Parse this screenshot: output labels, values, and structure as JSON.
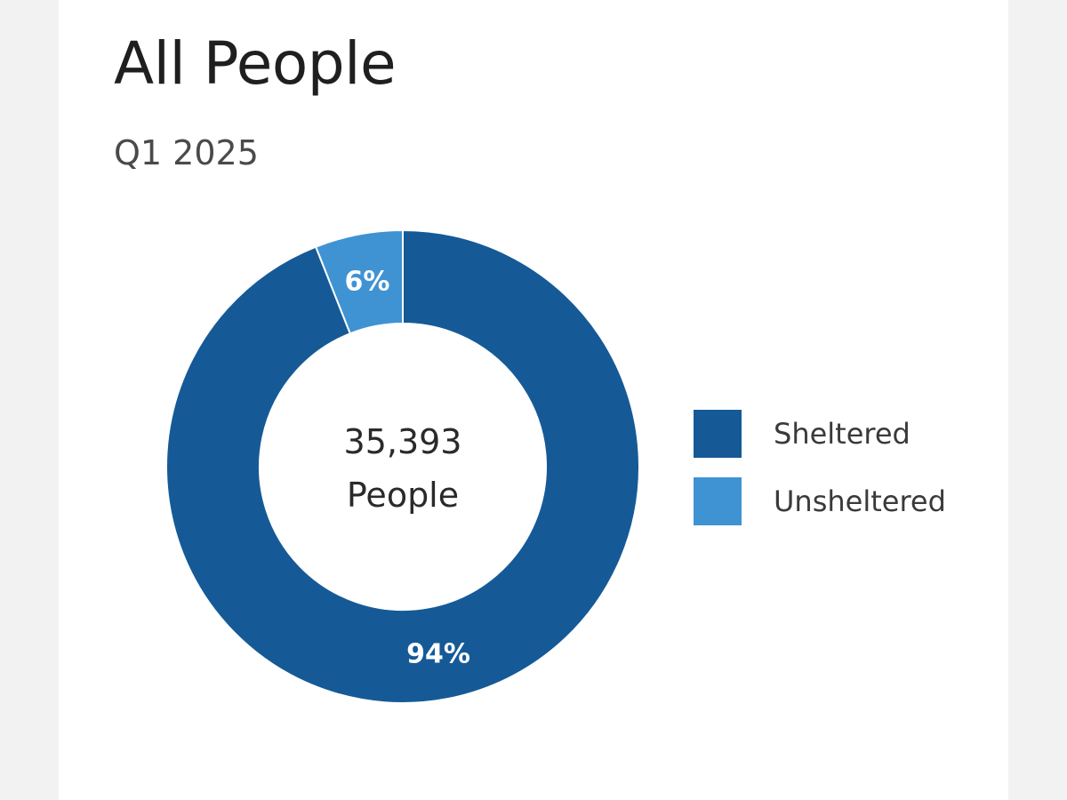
{
  "chart_data": {
    "type": "pie",
    "variant": "donut",
    "title": "All People",
    "subtitle": "Q1 2025",
    "center_label": {
      "value": "35,393",
      "unit": "People"
    },
    "slices": [
      {
        "name": "Unsheltered",
        "value": 6,
        "label": "6%",
        "color": "#3f93d3"
      },
      {
        "name": "Sheltered",
        "value": 94,
        "label": "94%",
        "color": "#155a96"
      }
    ],
    "legend": {
      "placement": "right",
      "entries": [
        {
          "name": "Sheltered",
          "color": "#155a96"
        },
        {
          "name": "Unsheltered",
          "color": "#3f93d3"
        }
      ]
    }
  }
}
